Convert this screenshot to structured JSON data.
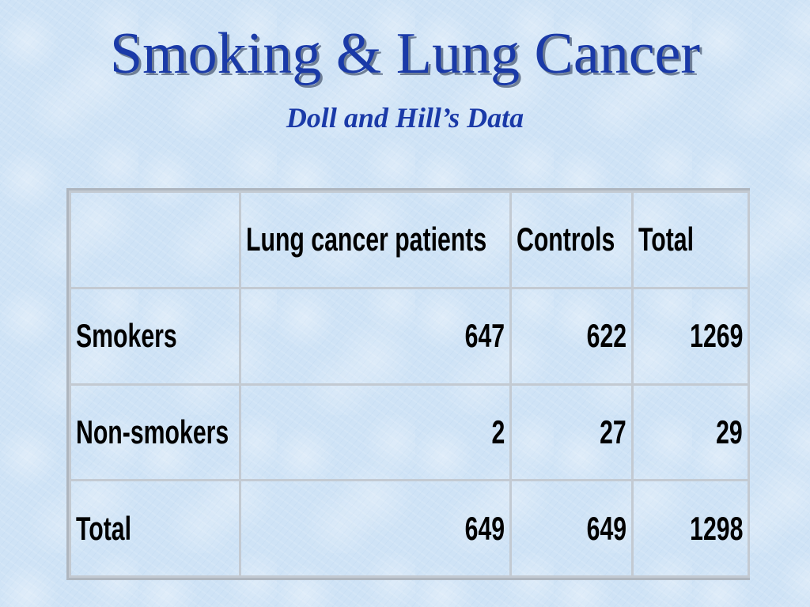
{
  "slide": {
    "title": "Smoking & Lung Cancer",
    "subtitle": "Doll and Hill’s Data"
  },
  "table": {
    "headers": [
      "",
      "Lung cancer patients",
      "Controls",
      "Total"
    ],
    "rows": [
      {
        "label": "Smokers",
        "values": [
          "647",
          "622",
          "1269"
        ]
      },
      {
        "label": "Non-smokers",
        "values": [
          "2",
          "27",
          "29"
        ]
      },
      {
        "label": "Total",
        "values": [
          "649",
          "649",
          "1298"
        ]
      }
    ]
  },
  "colors": {
    "title": "#1a3aa8",
    "background": "#cfe3f6",
    "grid": "#c3cad2"
  }
}
